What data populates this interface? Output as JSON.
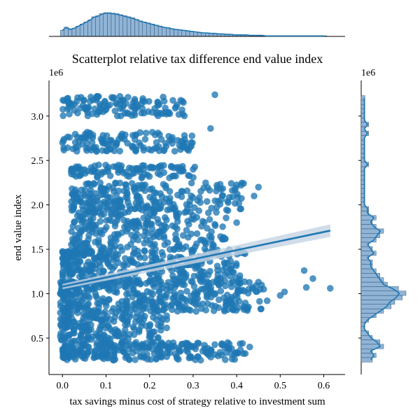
{
  "colors": {
    "accent": "#1f77b4",
    "hist_fill": "#8fb4d6",
    "ci_band": "#c6d3e3"
  },
  "chart_data": {
    "type": "scatter",
    "title": "Scatterplot relative tax difference end value index",
    "xlabel": "tax savings minus cost of strategy relative to investment sum",
    "ylabel": "end value index",
    "xlim": [
      -0.031,
      0.649
    ],
    "ylim": [
      90000,
      3400000
    ],
    "y_offset_label": "1e6",
    "y_hist_offset_label": "1e6",
    "x_ticks": [
      0.0,
      0.1,
      0.2,
      0.3,
      0.4,
      0.5,
      0.6
    ],
    "x_tick_labels": [
      "0.0",
      "0.1",
      "0.2",
      "0.3",
      "0.4",
      "0.5",
      "0.6"
    ],
    "y_ticks": [
      500000,
      1000000,
      1500000,
      2000000,
      2500000,
      3000000
    ],
    "y_tick_labels": [
      "0.5",
      "1.0",
      "1.5",
      "2.0",
      "2.5",
      "3.0"
    ],
    "grid": false,
    "regression": {
      "x": [
        0.0,
        0.615
      ],
      "y": [
        1080000,
        1710000
      ],
      "ci_halfwidth": [
        30000,
        70000
      ]
    },
    "density_bands": [
      {
        "y_range": [
          3000000,
          3230000
        ],
        "x_range": [
          0.0,
          0.28
        ],
        "count": 130
      },
      {
        "y_range": [
          2600000,
          2820000
        ],
        "x_range": [
          0.0,
          0.3
        ],
        "count": 130
      },
      {
        "y_range": [
          2300000,
          2450000
        ],
        "x_range": [
          0.02,
          0.31
        ],
        "count": 100
      },
      {
        "y_range": [
          1950000,
          2250000
        ],
        "x_range": [
          0.02,
          0.42
        ],
        "count": 220
      },
      {
        "y_range": [
          1500000,
          1950000
        ],
        "x_range": [
          0.02,
          0.38
        ],
        "count": 260
      },
      {
        "y_range": [
          1100000,
          1500000
        ],
        "x_range": [
          0.0,
          0.42
        ],
        "count": 380
      },
      {
        "y_range": [
          800000,
          1150000
        ],
        "x_range": [
          -0.005,
          0.46
        ],
        "count": 380
      },
      {
        "y_range": [
          450000,
          800000
        ],
        "x_range": [
          -0.005,
          0.24
        ],
        "count": 200
      },
      {
        "y_range": [
          250000,
          450000
        ],
        "x_range": [
          0.0,
          0.42
        ],
        "count": 260
      }
    ],
    "outliers": [
      {
        "x": 0.555,
        "y": 1260000
      },
      {
        "x": 0.575,
        "y": 1170000
      },
      {
        "x": 0.615,
        "y": 1060000
      },
      {
        "x": 0.56,
        "y": 1070000
      },
      {
        "x": 0.51,
        "y": 1020000
      },
      {
        "x": 0.5,
        "y": 980000
      },
      {
        "x": 0.47,
        "y": 920000
      },
      {
        "x": 0.462,
        "y": 1050000
      },
      {
        "x": 0.45,
        "y": 1130000
      },
      {
        "x": 0.44,
        "y": 2100000
      },
      {
        "x": 0.45,
        "y": 2200000
      },
      {
        "x": 0.43,
        "y": 400000
      },
      {
        "x": 0.4,
        "y": 1800000
      },
      {
        "x": 0.41,
        "y": 1460000
      },
      {
        "x": 0.39,
        "y": 830000
      },
      {
        "x": 0.35,
        "y": 3240000
      },
      {
        "x": 0.34,
        "y": 2860000
      },
      {
        "x": 0.3,
        "y": 2400000
      }
    ],
    "marginal_x_hist": {
      "bin_edges_from": -0.005,
      "bin_width": 0.009,
      "counts": [
        12,
        18,
        14,
        16,
        20,
        24,
        28,
        32,
        38,
        40,
        44,
        46,
        46,
        45,
        44,
        42,
        40,
        38,
        36,
        33,
        30,
        28,
        26,
        24,
        22,
        20,
        18,
        17,
        15,
        14,
        13,
        12,
        11,
        10,
        9,
        8,
        7,
        7,
        6,
        6,
        5,
        5,
        4,
        4,
        3,
        3,
        3,
        3,
        2,
        2,
        2,
        2,
        1,
        1,
        1,
        1,
        1,
        1,
        1,
        1,
        1,
        1,
        1,
        1,
        1,
        1,
        1,
        1
      ]
    },
    "marginal_y_hist": {
      "bin_edges_from": 230000,
      "bin_width": 50000,
      "counts": [
        3,
        4,
        3,
        6,
        5,
        3,
        2,
        1,
        1,
        2,
        4,
        6,
        8,
        9,
        11,
        12,
        10,
        7,
        6,
        5,
        4,
        3,
        3,
        2,
        4,
        3,
        2,
        4,
        5,
        6,
        4,
        3,
        4,
        2,
        2,
        1,
        1,
        1,
        1,
        1,
        1,
        1,
        1,
        1,
        2,
        1,
        1,
        1,
        1,
        1,
        1,
        2,
        1,
        2,
        1,
        1,
        1,
        1,
        1,
        1
      ],
      "max_count": 12
    }
  }
}
